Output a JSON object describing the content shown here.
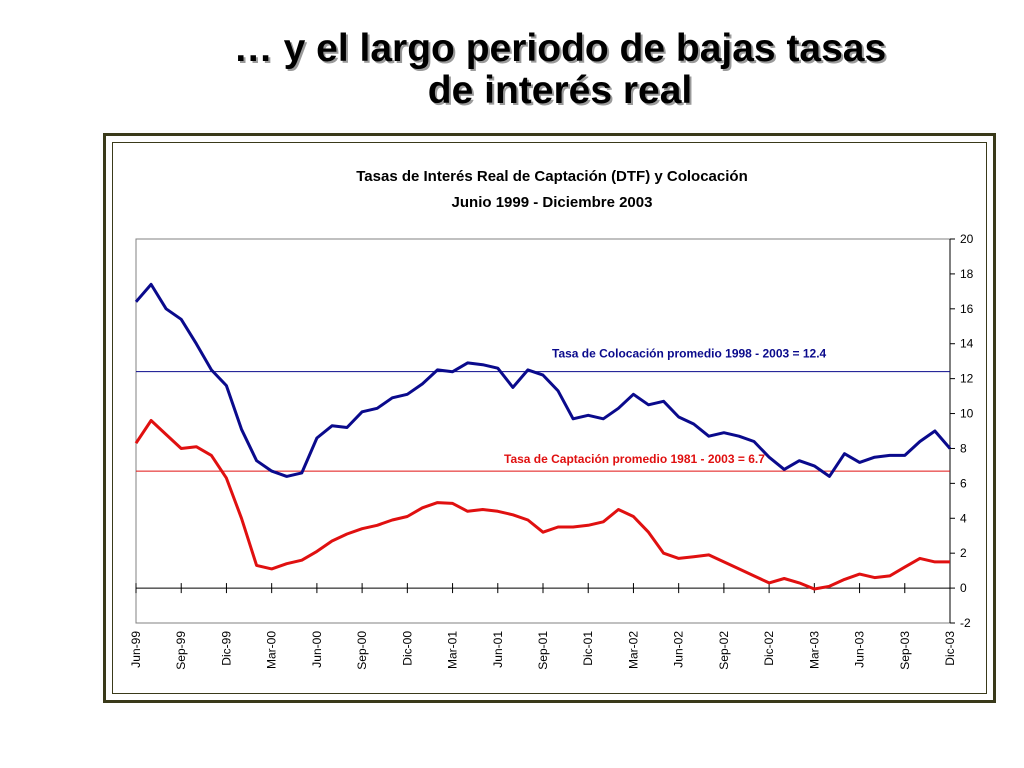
{
  "slide": {
    "title_line1": "… y el largo periodo de bajas tasas",
    "title_line2": "de interés real"
  },
  "colors": {
    "colocacion": "#0a0a8c",
    "captacion": "#e01010",
    "frame": "#3a3a1a"
  },
  "chart_data": {
    "type": "line",
    "title": "Tasas de Interés Real de Captación (DTF) y Colocación",
    "subtitle": "Junio 1999 - Diciembre 2003",
    "y_axis_position": "right",
    "ylim": [
      -2,
      20
    ],
    "yticks": [
      -2,
      0,
      2,
      4,
      6,
      8,
      10,
      12,
      14,
      16,
      18,
      20
    ],
    "x_tick_labels": [
      "Jun-99",
      "Sep-99",
      "Dic-99",
      "Mar-00",
      "Jun-00",
      "Sep-00",
      "Dic-00",
      "Mar-01",
      "Jun-01",
      "Sep-01",
      "Dic-01",
      "Mar-02",
      "Jun-02",
      "Sep-02",
      "Dic-02",
      "Mar-03",
      "Jun-03",
      "Sep-03",
      "Dic-03"
    ],
    "grid": false,
    "series": [
      {
        "key": "colocacion",
        "values": [
          16.4,
          17.4,
          16.0,
          15.4,
          14.0,
          12.5,
          11.6,
          9.1,
          7.3,
          6.7,
          6.4,
          6.6,
          8.6,
          9.3,
          9.2,
          10.1,
          10.3,
          10.9,
          11.1,
          11.7,
          12.5,
          12.4,
          12.9,
          12.8,
          12.6,
          11.5,
          12.5,
          12.2,
          11.3,
          9.7,
          9.9,
          9.7,
          10.3,
          11.1,
          10.5,
          10.7,
          9.8,
          9.4,
          8.7,
          8.9,
          8.7,
          8.4,
          7.5,
          6.8,
          7.3,
          7.0,
          6.4,
          7.7,
          7.2,
          7.5,
          7.6,
          7.6,
          8.4,
          9.0,
          8.0
        ]
      },
      {
        "key": "captacion",
        "values": [
          8.3,
          9.6,
          8.8,
          8.0,
          8.1,
          7.6,
          6.3,
          4.0,
          1.3,
          1.1,
          1.4,
          1.6,
          2.1,
          2.7,
          3.1,
          3.4,
          3.6,
          3.9,
          4.1,
          4.6,
          4.9,
          4.85,
          4.4,
          4.5,
          4.4,
          4.2,
          3.9,
          3.2,
          3.5,
          3.5,
          3.6,
          3.8,
          4.5,
          4.1,
          3.2,
          2.0,
          1.7,
          1.8,
          1.9,
          1.5,
          1.1,
          0.7,
          0.3,
          0.55,
          0.3,
          -0.05,
          0.1,
          0.5,
          0.8,
          0.6,
          0.7,
          1.2,
          1.7,
          1.5,
          1.5
        ]
      }
    ],
    "reference_lines": [
      {
        "key": "colocacion",
        "value": 12.4,
        "label": "Tasa de Colocación promedio 1998 - 2003 = 12.4"
      },
      {
        "key": "captacion",
        "value": 6.7,
        "label": "Tasa de Captación promedio 1981 - 2003 = 6.7"
      }
    ]
  }
}
